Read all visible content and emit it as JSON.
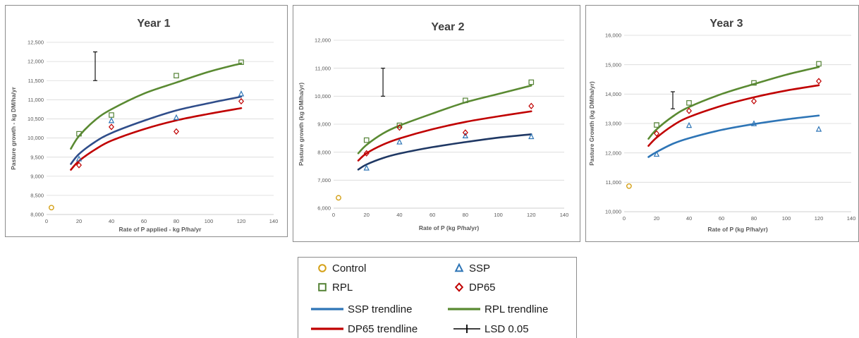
{
  "colors": {
    "control": "#d4a017",
    "ssp": "#2e75b6",
    "rpl": "#548235",
    "dp65": "#c00000",
    "ssp_trend_y1": "#2f4d8a",
    "ssp_trend_y2": "#1f3864",
    "ssp_trend_y3": "#2e75b6",
    "rpl_trend": "#5a8a32",
    "dp65_trend": "#c00000",
    "lsd": "#000000",
    "grid": "#d9d9d9",
    "axis": "#bfbfbf"
  },
  "chart_data": [
    {
      "type": "scatter",
      "title": "Year 1",
      "xlabel": "Rate of P applied  - kg P/ha/yr",
      "ylabel": "Pasture growth - kg DM/ha/yr",
      "xlim": [
        0,
        140
      ],
      "ylim": [
        8000,
        12500
      ],
      "xticks": [
        "0",
        "20",
        "40",
        "60",
        "80",
        "100",
        "120",
        "140"
      ],
      "yticks": [
        "8,000",
        "8,500",
        "9,000",
        "9,500",
        "10,000",
        "10,500",
        "11,000",
        "11,500",
        "12,000",
        "12,500"
      ],
      "grid": "horizontal",
      "series": [
        {
          "name": "Control",
          "marker": "circle",
          "points": [
            [
              3,
              8180
            ]
          ]
        },
        {
          "name": "SSP",
          "marker": "triangle",
          "points": [
            [
              20,
              9450
            ],
            [
              40,
              10450
            ],
            [
              80,
              10530
            ],
            [
              120,
              11150
            ]
          ]
        },
        {
          "name": "RPL",
          "marker": "square",
          "points": [
            [
              20,
              10110
            ],
            [
              40,
              10600
            ],
            [
              80,
              11630
            ],
            [
              120,
              11980
            ]
          ]
        },
        {
          "name": "DP65",
          "marker": "diamond",
          "points": [
            [
              20,
              9290
            ],
            [
              40,
              10290
            ],
            [
              80,
              10170
            ],
            [
              120,
              10960
            ]
          ]
        },
        {
          "name": "SSP trendline",
          "line": true,
          "x": [
            15,
            20,
            30,
            40,
            60,
            80,
            100,
            120
          ],
          "values": [
            9320,
            9580,
            9900,
            10130,
            10450,
            10720,
            10910,
            11080
          ]
        },
        {
          "name": "RPL trendline",
          "line": true,
          "x": [
            15,
            20,
            30,
            40,
            60,
            80,
            100,
            120
          ],
          "values": [
            9720,
            10050,
            10470,
            10750,
            11160,
            11450,
            11730,
            11950
          ]
        },
        {
          "name": "DP65 trendline",
          "line": true,
          "x": [
            15,
            20,
            30,
            40,
            60,
            80,
            100,
            120
          ],
          "values": [
            9170,
            9400,
            9700,
            9930,
            10230,
            10460,
            10630,
            10780
          ]
        }
      ],
      "lsd": {
        "x": 30,
        "low": 11500,
        "high": 12250
      }
    },
    {
      "type": "scatter",
      "title": "Year 2",
      "xlabel": "Rate of P (kg P/ha/yr)",
      "ylabel": "Pasture growth (kg DM/ha/yr)",
      "xlim": [
        0,
        140
      ],
      "ylim": [
        6000,
        12000
      ],
      "xticks": [
        "0",
        "20",
        "40",
        "60",
        "80",
        "100",
        "120",
        "140"
      ],
      "yticks": [
        "6,000",
        "7,000",
        "8,000",
        "9,000",
        "10,000",
        "11,000",
        "12,000"
      ],
      "grid": "horizontal",
      "series": [
        {
          "name": "Control",
          "marker": "circle",
          "points": [
            [
              3,
              6370
            ]
          ]
        },
        {
          "name": "SSP",
          "marker": "triangle",
          "points": [
            [
              20,
              7430
            ],
            [
              40,
              8360
            ],
            [
              80,
              8580
            ],
            [
              120,
              8550
            ]
          ]
        },
        {
          "name": "RPL",
          "marker": "square",
          "points": [
            [
              20,
              8430
            ],
            [
              40,
              8960
            ],
            [
              80,
              9850
            ],
            [
              120,
              10500
            ]
          ]
        },
        {
          "name": "DP65",
          "marker": "diamond",
          "points": [
            [
              20,
              7960
            ],
            [
              40,
              8880
            ],
            [
              80,
              8700
            ],
            [
              120,
              9650
            ]
          ]
        },
        {
          "name": "SSP trendline",
          "line": true,
          "x": [
            15,
            20,
            30,
            40,
            60,
            80,
            100,
            120
          ],
          "values": [
            7380,
            7560,
            7790,
            7950,
            8180,
            8360,
            8520,
            8640
          ]
        },
        {
          "name": "RPL trendline",
          "line": true,
          "x": [
            15,
            20,
            30,
            40,
            60,
            80,
            100,
            120
          ],
          "values": [
            7960,
            8260,
            8670,
            8950,
            9380,
            9780,
            10080,
            10380
          ]
        },
        {
          "name": "DP65 trendline",
          "line": true,
          "x": [
            15,
            20,
            30,
            40,
            60,
            80,
            100,
            120
          ],
          "values": [
            7700,
            7960,
            8270,
            8490,
            8820,
            9080,
            9280,
            9460
          ]
        }
      ],
      "lsd": {
        "x": 30,
        "low": 10000,
        "high": 11000
      }
    },
    {
      "type": "scatter",
      "title": "Year 3",
      "xlabel": "Rate of P (kg P/ha/yr)",
      "ylabel": "Pasture Growth (kg DM/ha/yr)",
      "xlim": [
        0,
        140
      ],
      "ylim": [
        10000,
        16000
      ],
      "xticks": [
        "0",
        "20",
        "40",
        "60",
        "80",
        "100",
        "120",
        "140"
      ],
      "yticks": [
        "10,000",
        "11,000",
        "12,000",
        "13,000",
        "14,000",
        "15,000",
        "16,000"
      ],
      "grid": "horizontal",
      "series": [
        {
          "name": "Control",
          "marker": "circle",
          "points": [
            [
              3,
              10870
            ]
          ]
        },
        {
          "name": "SSP",
          "marker": "triangle",
          "points": [
            [
              20,
              11950
            ],
            [
              40,
              12930
            ],
            [
              80,
              12990
            ],
            [
              120,
              12800
            ]
          ]
        },
        {
          "name": "RPL",
          "marker": "square",
          "points": [
            [
              20,
              12950
            ],
            [
              40,
              13700
            ],
            [
              80,
              14380
            ],
            [
              120,
              15030
            ]
          ]
        },
        {
          "name": "DP65",
          "marker": "diamond",
          "points": [
            [
              20,
              12660
            ],
            [
              40,
              13430
            ],
            [
              80,
              13760
            ],
            [
              120,
              14440
            ]
          ]
        },
        {
          "name": "SSP trendline",
          "line": true,
          "x": [
            15,
            20,
            30,
            40,
            60,
            80,
            100,
            120
          ],
          "values": [
            11860,
            12030,
            12310,
            12500,
            12780,
            12980,
            13140,
            13270
          ]
        },
        {
          "name": "RPL trendline",
          "line": true,
          "x": [
            15,
            20,
            30,
            40,
            60,
            80,
            100,
            120
          ],
          "values": [
            12480,
            12800,
            13240,
            13560,
            14000,
            14340,
            14660,
            14920
          ]
        },
        {
          "name": "DP65 trendline",
          "line": true,
          "x": [
            15,
            20,
            30,
            40,
            60,
            80,
            100,
            120
          ],
          "values": [
            12240,
            12520,
            12930,
            13220,
            13600,
            13890,
            14120,
            14300
          ]
        }
      ],
      "lsd": {
        "x": 30,
        "low": 13500,
        "high": 14080
      }
    }
  ],
  "legend": {
    "items": [
      {
        "label": "Control",
        "icon": "circle-marker",
        "color": "control"
      },
      {
        "label": "SSP",
        "icon": "triangle-marker",
        "color": "ssp"
      },
      {
        "label": "RPL",
        "icon": "square-marker",
        "color": "rpl"
      },
      {
        "label": "DP65",
        "icon": "diamond-marker",
        "color": "dp65"
      },
      {
        "label": "SSP trendline",
        "icon": "line",
        "color": "ssp"
      },
      {
        "label": "RPL trendline",
        "icon": "line",
        "color": "rpl_trend"
      },
      {
        "label": "DP65 trendline",
        "icon": "line",
        "color": "dp65_trend"
      },
      {
        "label": "LSD 0.05",
        "icon": "lsd-line",
        "color": "lsd"
      }
    ]
  }
}
